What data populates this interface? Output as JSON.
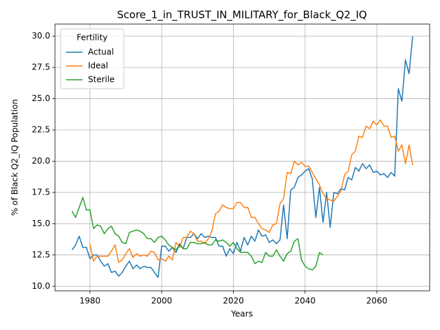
{
  "chart_data": {
    "type": "line",
    "title": "Score_1_in_TRUST_IN_MILITARY_for_Black_Q2_IQ",
    "xlabel": "Years",
    "ylabel": "% of Black Q2_IQ Population",
    "legend_title": "Fertility",
    "legend_loc": "upper left",
    "grid": true,
    "x": [
      1975,
      1976,
      1977,
      1978,
      1979,
      1980,
      1981,
      1982,
      1983,
      1984,
      1985,
      1986,
      1987,
      1988,
      1989,
      1990,
      1991,
      1992,
      1993,
      1994,
      1995,
      1996,
      1997,
      1998,
      1999,
      2000,
      2001,
      2002,
      2003,
      2004,
      2005,
      2006,
      2007,
      2008,
      2009,
      2010,
      2011,
      2012,
      2013,
      2014,
      2015,
      2016,
      2017,
      2018,
      2019,
      2020,
      2021,
      2022,
      2023,
      2024,
      2025,
      2026,
      2027,
      2028,
      2029,
      2030,
      2031,
      2032,
      2033,
      2034,
      2035,
      2036,
      2037,
      2038,
      2039,
      2040,
      2041,
      2042,
      2043,
      2044,
      2045,
      2046,
      2047,
      2048,
      2049,
      2050,
      2051,
      2052,
      2053,
      2054,
      2055,
      2056,
      2057,
      2058,
      2059,
      2060,
      2061,
      2062,
      2063,
      2064,
      2065,
      2066,
      2067,
      2068,
      2069,
      2070
    ],
    "series": [
      {
        "name": "Actual",
        "color": "#1f77b4",
        "values": [
          12.9,
          13.3,
          14.0,
          13.1,
          13.1,
          12.2,
          12.5,
          12.5,
          12.0,
          11.6,
          11.8,
          11.1,
          11.2,
          10.8,
          11.1,
          11.6,
          12.0,
          11.4,
          11.7,
          11.4,
          11.6,
          11.5,
          11.5,
          11.1,
          10.7,
          13.2,
          13.2,
          12.8,
          13.1,
          12.7,
          13.4,
          13.0,
          13.9,
          13.9,
          14.2,
          13.8,
          14.2,
          13.9,
          14.0,
          13.9,
          13.9,
          13.2,
          13.2,
          12.4,
          13.0,
          12.6,
          13.5,
          12.8,
          13.9,
          13.3,
          14.0,
          13.6,
          14.5,
          14.0,
          14.1,
          13.5,
          13.7,
          13.4,
          13.7,
          16.5,
          13.8,
          17.7,
          17.9,
          18.7,
          18.9,
          19.2,
          19.4,
          18.6,
          15.5,
          17.9,
          15.1,
          17.5,
          14.7,
          17.5,
          17.4,
          17.8,
          17.7,
          18.7,
          18.5,
          19.5,
          19.2,
          19.8,
          19.4,
          19.7,
          19.1,
          19.2,
          18.9,
          19.0,
          18.7,
          19.1,
          18.8,
          25.8,
          24.8,
          28.1,
          27.0,
          30.0
        ]
      },
      {
        "name": "Ideal",
        "color": "#ff7f0e",
        "values": [
          null,
          null,
          null,
          null,
          null,
          13.4,
          12.0,
          12.4,
          12.4,
          12.4,
          12.4,
          12.8,
          13.3,
          11.9,
          12.1,
          12.6,
          13.0,
          12.3,
          12.6,
          12.4,
          12.5,
          12.4,
          12.8,
          12.7,
          12.1,
          12.2,
          12.0,
          12.4,
          12.1,
          13.5,
          13.1,
          13.9,
          13.9,
          14.4,
          14.2,
          13.6,
          13.6,
          13.4,
          13.8,
          14.4,
          15.8,
          16.0,
          16.5,
          16.3,
          16.2,
          16.2,
          16.7,
          16.7,
          16.3,
          16.3,
          15.5,
          15.5,
          15.0,
          14.6,
          14.5,
          14.3,
          14.9,
          15.0,
          16.6,
          17.0,
          19.1,
          19.0,
          20.0,
          19.7,
          19.9,
          19.6,
          19.6,
          19.1,
          18.6,
          18.1,
          17.4,
          17.0,
          16.9,
          16.8,
          17.2,
          17.6,
          18.9,
          19.2,
          20.5,
          20.8,
          22.0,
          21.9,
          22.8,
          22.6,
          23.2,
          22.9,
          23.3,
          22.8,
          22.8,
          21.9,
          22.0,
          20.8,
          21.3,
          19.8,
          21.3,
          19.7
        ]
      },
      {
        "name": "Sterile",
        "color": "#2ca02c",
        "values": [
          16.0,
          15.5,
          16.3,
          17.1,
          16.1,
          16.1,
          14.6,
          14.9,
          14.8,
          14.2,
          14.6,
          14.8,
          14.2,
          14.0,
          13.5,
          13.4,
          14.3,
          14.4,
          14.5,
          14.4,
          14.2,
          13.8,
          13.8,
          13.5,
          13.9,
          14.0,
          13.7,
          13.3,
          13.1,
          12.9,
          13.3,
          13.0,
          13.0,
          13.5,
          13.5,
          13.4,
          13.4,
          13.5,
          13.3,
          13.3,
          13.7,
          13.6,
          13.7,
          13.5,
          13.2,
          13.5,
          13.0,
          12.7,
          12.7,
          12.7,
          12.4,
          11.8,
          12.0,
          11.9,
          12.7,
          12.4,
          12.4,
          12.9,
          12.4,
          12.0,
          12.6,
          12.8,
          13.6,
          13.8,
          12.1,
          11.6,
          11.4,
          11.3,
          11.6,
          12.7,
          12.5,
          null,
          null,
          null,
          null,
          null,
          null,
          null,
          null,
          null,
          null,
          null,
          null,
          null,
          null,
          null,
          null,
          null,
          null,
          null,
          null,
          null,
          null,
          null,
          null,
          null
        ]
      }
    ],
    "xlim": [
      1970.25,
      2074.75
    ],
    "xticks": [
      1980,
      2000,
      2020,
      2040,
      2060
    ],
    "ylim": [
      9.63,
      30.97
    ],
    "yticks": [
      {
        "value": 10,
        "label": "10.0"
      },
      12.5,
      {
        "value": 15,
        "label": "15.0"
      },
      17.5,
      {
        "value": 20,
        "label": "20.0"
      },
      22.5,
      {
        "value": 25,
        "label": "25.0"
      },
      27.5,
      {
        "value": 30,
        "label": "30.0"
      }
    ]
  }
}
